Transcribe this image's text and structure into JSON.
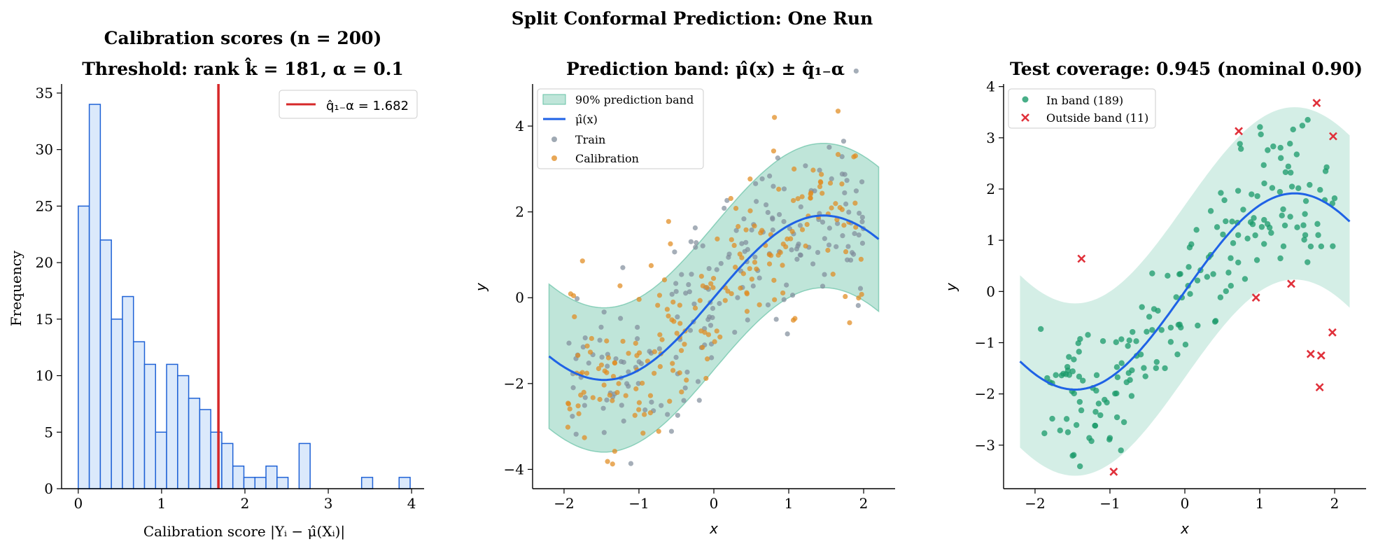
{
  "suptitle": "Split Conformal Prediction: One Run",
  "colors": {
    "hist_fill": "#dbe9fb",
    "hist_edge": "#1f62d6",
    "threshold_line": "#d62728",
    "band_fill": "#66c2a5",
    "mu_line": "#1f62e6",
    "train": "#7f8c9a",
    "calibration": "#e08a1e",
    "in_band": "#1a9a6a",
    "outside": "#e0303a"
  },
  "chart_data": [
    {
      "type": "bar",
      "title_line1": "Calibration scores (n = 200)",
      "title_line2": "Threshold: rank k̂ = 181, α = 0.1",
      "xlabel": "Calibration score |Yᵢ − μ̂(Xᵢ)|",
      "ylabel": "Frequency",
      "xlim": [
        -0.2,
        4.15
      ],
      "ylim": [
        0,
        35.8
      ],
      "xticks": [
        0,
        1,
        2,
        3,
        4
      ],
      "yticks": [
        0,
        5,
        10,
        15,
        20,
        25,
        30,
        35
      ],
      "bin_width": 0.1325,
      "bin_start": 0.0,
      "values": [
        25,
        34,
        22,
        15,
        17,
        13,
        11,
        5,
        11,
        10,
        8,
        7,
        5,
        4,
        2,
        1,
        1,
        2,
        1,
        0,
        4,
        0,
        0,
        0,
        0,
        0,
        0,
        0,
        0,
        0,
        0,
        0,
        0,
        0,
        0,
        0,
        0,
        0,
        0,
        0,
        0,
        0,
        0,
        0,
        0,
        0,
        0,
        0,
        0,
        0,
        0,
        0,
        0,
        0,
        0,
        0,
        0,
        0,
        0,
        0
      ],
      "extra_bars": [
        {
          "x": 3.4,
          "value": 1
        },
        {
          "x": 3.85,
          "value": 1
        }
      ],
      "threshold": 1.682,
      "legend": [
        {
          "label": "q̂₁₋α = 1.682"
        }
      ],
      "legend_position": "top-right"
    },
    {
      "type": "scatter",
      "title": "Prediction band: μ̂(x) ± q̂₁₋α",
      "xlabel": "x",
      "ylabel": "y",
      "xlim": [
        -2.42,
        2.42
      ],
      "ylim": [
        -4.45,
        4.98
      ],
      "xticks": [
        -2,
        -1,
        0,
        1,
        2
      ],
      "yticks": [
        -4,
        -2,
        0,
        2,
        4
      ],
      "band_halfwidth": 1.682,
      "legend": [
        {
          "label": "90% prediction band"
        },
        {
          "label": "μ̂(x)"
        },
        {
          "label": "Train"
        },
        {
          "label": "Calibration"
        }
      ],
      "legend_position": "upper-left"
    },
    {
      "type": "scatter",
      "title": "Test coverage: 0.945 (nominal 0.90)",
      "xlabel": "x",
      "ylabel": "y",
      "xlim": [
        -2.42,
        2.42
      ],
      "ylim": [
        -3.85,
        4.05
      ],
      "xticks": [
        -2,
        -1,
        0,
        1,
        2
      ],
      "yticks": [
        -3,
        -2,
        -1,
        0,
        1,
        2,
        3,
        4
      ],
      "band_halfwidth": 1.682,
      "legend": [
        {
          "label": "In band (189)"
        },
        {
          "label": "Outside band (11)"
        }
      ],
      "legend_position": "upper-left",
      "outside_points": [
        [
          -1.38,
          0.64
        ],
        [
          -0.95,
          -3.52
        ],
        [
          0.72,
          3.13
        ],
        [
          0.95,
          -0.12
        ],
        [
          1.42,
          0.15
        ],
        [
          1.68,
          -1.22
        ],
        [
          1.76,
          3.68
        ],
        [
          1.8,
          -1.87
        ],
        [
          1.82,
          -1.25
        ],
        [
          1.97,
          -0.8
        ],
        [
          1.98,
          3.03
        ]
      ]
    }
  ]
}
